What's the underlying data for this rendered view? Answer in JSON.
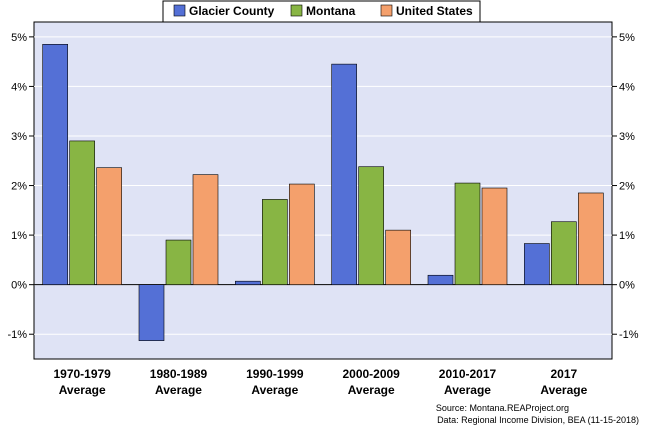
{
  "chart_data": {
    "type": "bar",
    "categories": [
      [
        "1970-1979",
        "Average"
      ],
      [
        "1980-1989",
        "Average"
      ],
      [
        "1990-1999",
        "Average"
      ],
      [
        "2000-2009",
        "Average"
      ],
      [
        "2010-2017",
        "Average"
      ],
      [
        "2017",
        "Average"
      ]
    ],
    "series": [
      {
        "name": "Glacier County",
        "color": "#5470d6",
        "values": [
          4.85,
          -1.13,
          0.07,
          4.45,
          0.19,
          0.83
        ]
      },
      {
        "name": "Montana",
        "color": "#88b544",
        "values": [
          2.9,
          0.9,
          1.72,
          2.38,
          2.05,
          1.27
        ]
      },
      {
        "name": "United States",
        "color": "#f4a06c",
        "values": [
          2.36,
          2.22,
          2.03,
          1.1,
          1.95,
          1.85
        ]
      }
    ],
    "ylim": [
      -1.5,
      5.3
    ],
    "yticks": [
      -1,
      0,
      1,
      2,
      3,
      4,
      5
    ],
    "ytick_labels": [
      "-1%",
      "0%",
      "1%",
      "2%",
      "3%",
      "4%",
      "5%"
    ],
    "grid": true,
    "legend_position": "top-center",
    "plot_background": "#dfe3f5",
    "title": "",
    "xlabel": "",
    "ylabel": ""
  },
  "source": {
    "line1": "Source: Montana.REAProject.org",
    "line2": "Data: Regional Income Division, BEA (11-15-2018)"
  }
}
